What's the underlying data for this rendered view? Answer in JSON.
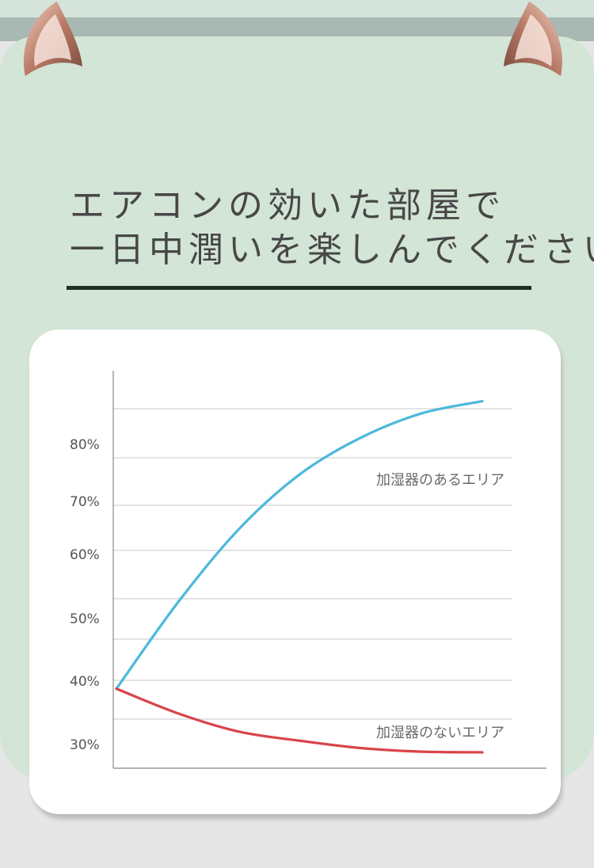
{
  "headline": {
    "line1": "エアコンの効いた部屋で",
    "line2": "一日中潤いを楽しんでください"
  },
  "colors": {
    "background": "#d3e5d6",
    "rule": "#1e3026",
    "with_humidifier": "#4ab9dc",
    "without_humidifier": "#d9444a"
  },
  "chart_data": {
    "type": "line",
    "yticks": [
      "80%",
      "70%",
      "60%",
      "50%",
      "40%",
      "30%"
    ],
    "ylim": [
      27,
      92
    ],
    "grid": true,
    "x": [
      0,
      1,
      2,
      3,
      4,
      5,
      6
    ],
    "series": [
      {
        "name": "加湿器のあるエリア",
        "values": [
          40,
          54,
          66,
          75,
          81,
          85,
          87
        ]
      },
      {
        "name": "加湿器のないエリア",
        "values": [
          40,
          36,
          33,
          31.5,
          30.3,
          29.7,
          29.6
        ]
      }
    ]
  }
}
